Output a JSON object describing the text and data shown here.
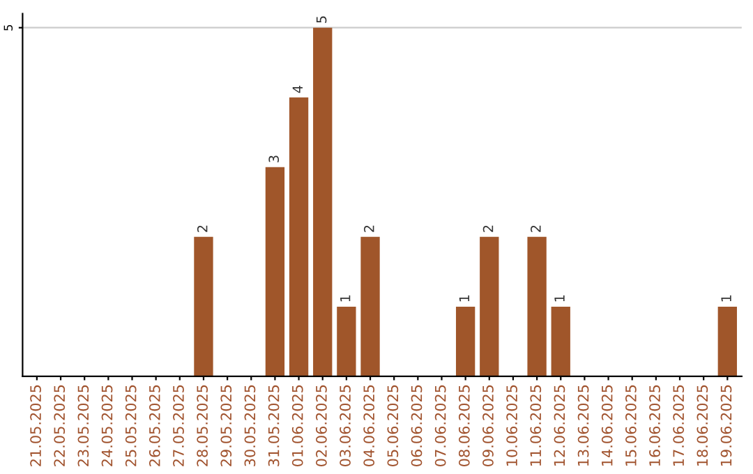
{
  "chart_data": {
    "type": "bar",
    "categories": [
      "21.05.2025",
      "22.05.2025",
      "23.05.2025",
      "24.05.2025",
      "25.05.2025",
      "26.05.2025",
      "27.05.2025",
      "28.05.2025",
      "29.05.2025",
      "30.05.2025",
      "31.05.2025",
      "01.06.2025",
      "02.06.2025",
      "03.06.2025",
      "04.06.2025",
      "05.06.2025",
      "06.06.2025",
      "07.06.2025",
      "08.06.2025",
      "09.06.2025",
      "10.06.2025",
      "11.06.2025",
      "12.06.2025",
      "13.06.2025",
      "14.06.2025",
      "15.06.2025",
      "16.06.2025",
      "17.06.2025",
      "18.06.2025",
      "19.06.2025"
    ],
    "values": [
      0,
      0,
      0,
      0,
      0,
      0,
      0,
      2,
      0,
      0,
      3,
      4,
      5,
      1,
      2,
      0,
      0,
      0,
      1,
      2,
      0,
      2,
      1,
      0,
      0,
      0,
      0,
      0,
      0,
      1
    ],
    "value_labels": [
      null,
      null,
      null,
      null,
      null,
      null,
      null,
      "2",
      null,
      null,
      "3",
      "4",
      "5",
      "1",
      "2",
      null,
      null,
      null,
      "1",
      "2",
      null,
      "2",
      "1",
      null,
      null,
      null,
      null,
      null,
      null,
      "1"
    ],
    "color": "#a0562a",
    "ylim": [
      0,
      5.2
    ],
    "yticks": [
      5
    ],
    "grid": "y"
  }
}
